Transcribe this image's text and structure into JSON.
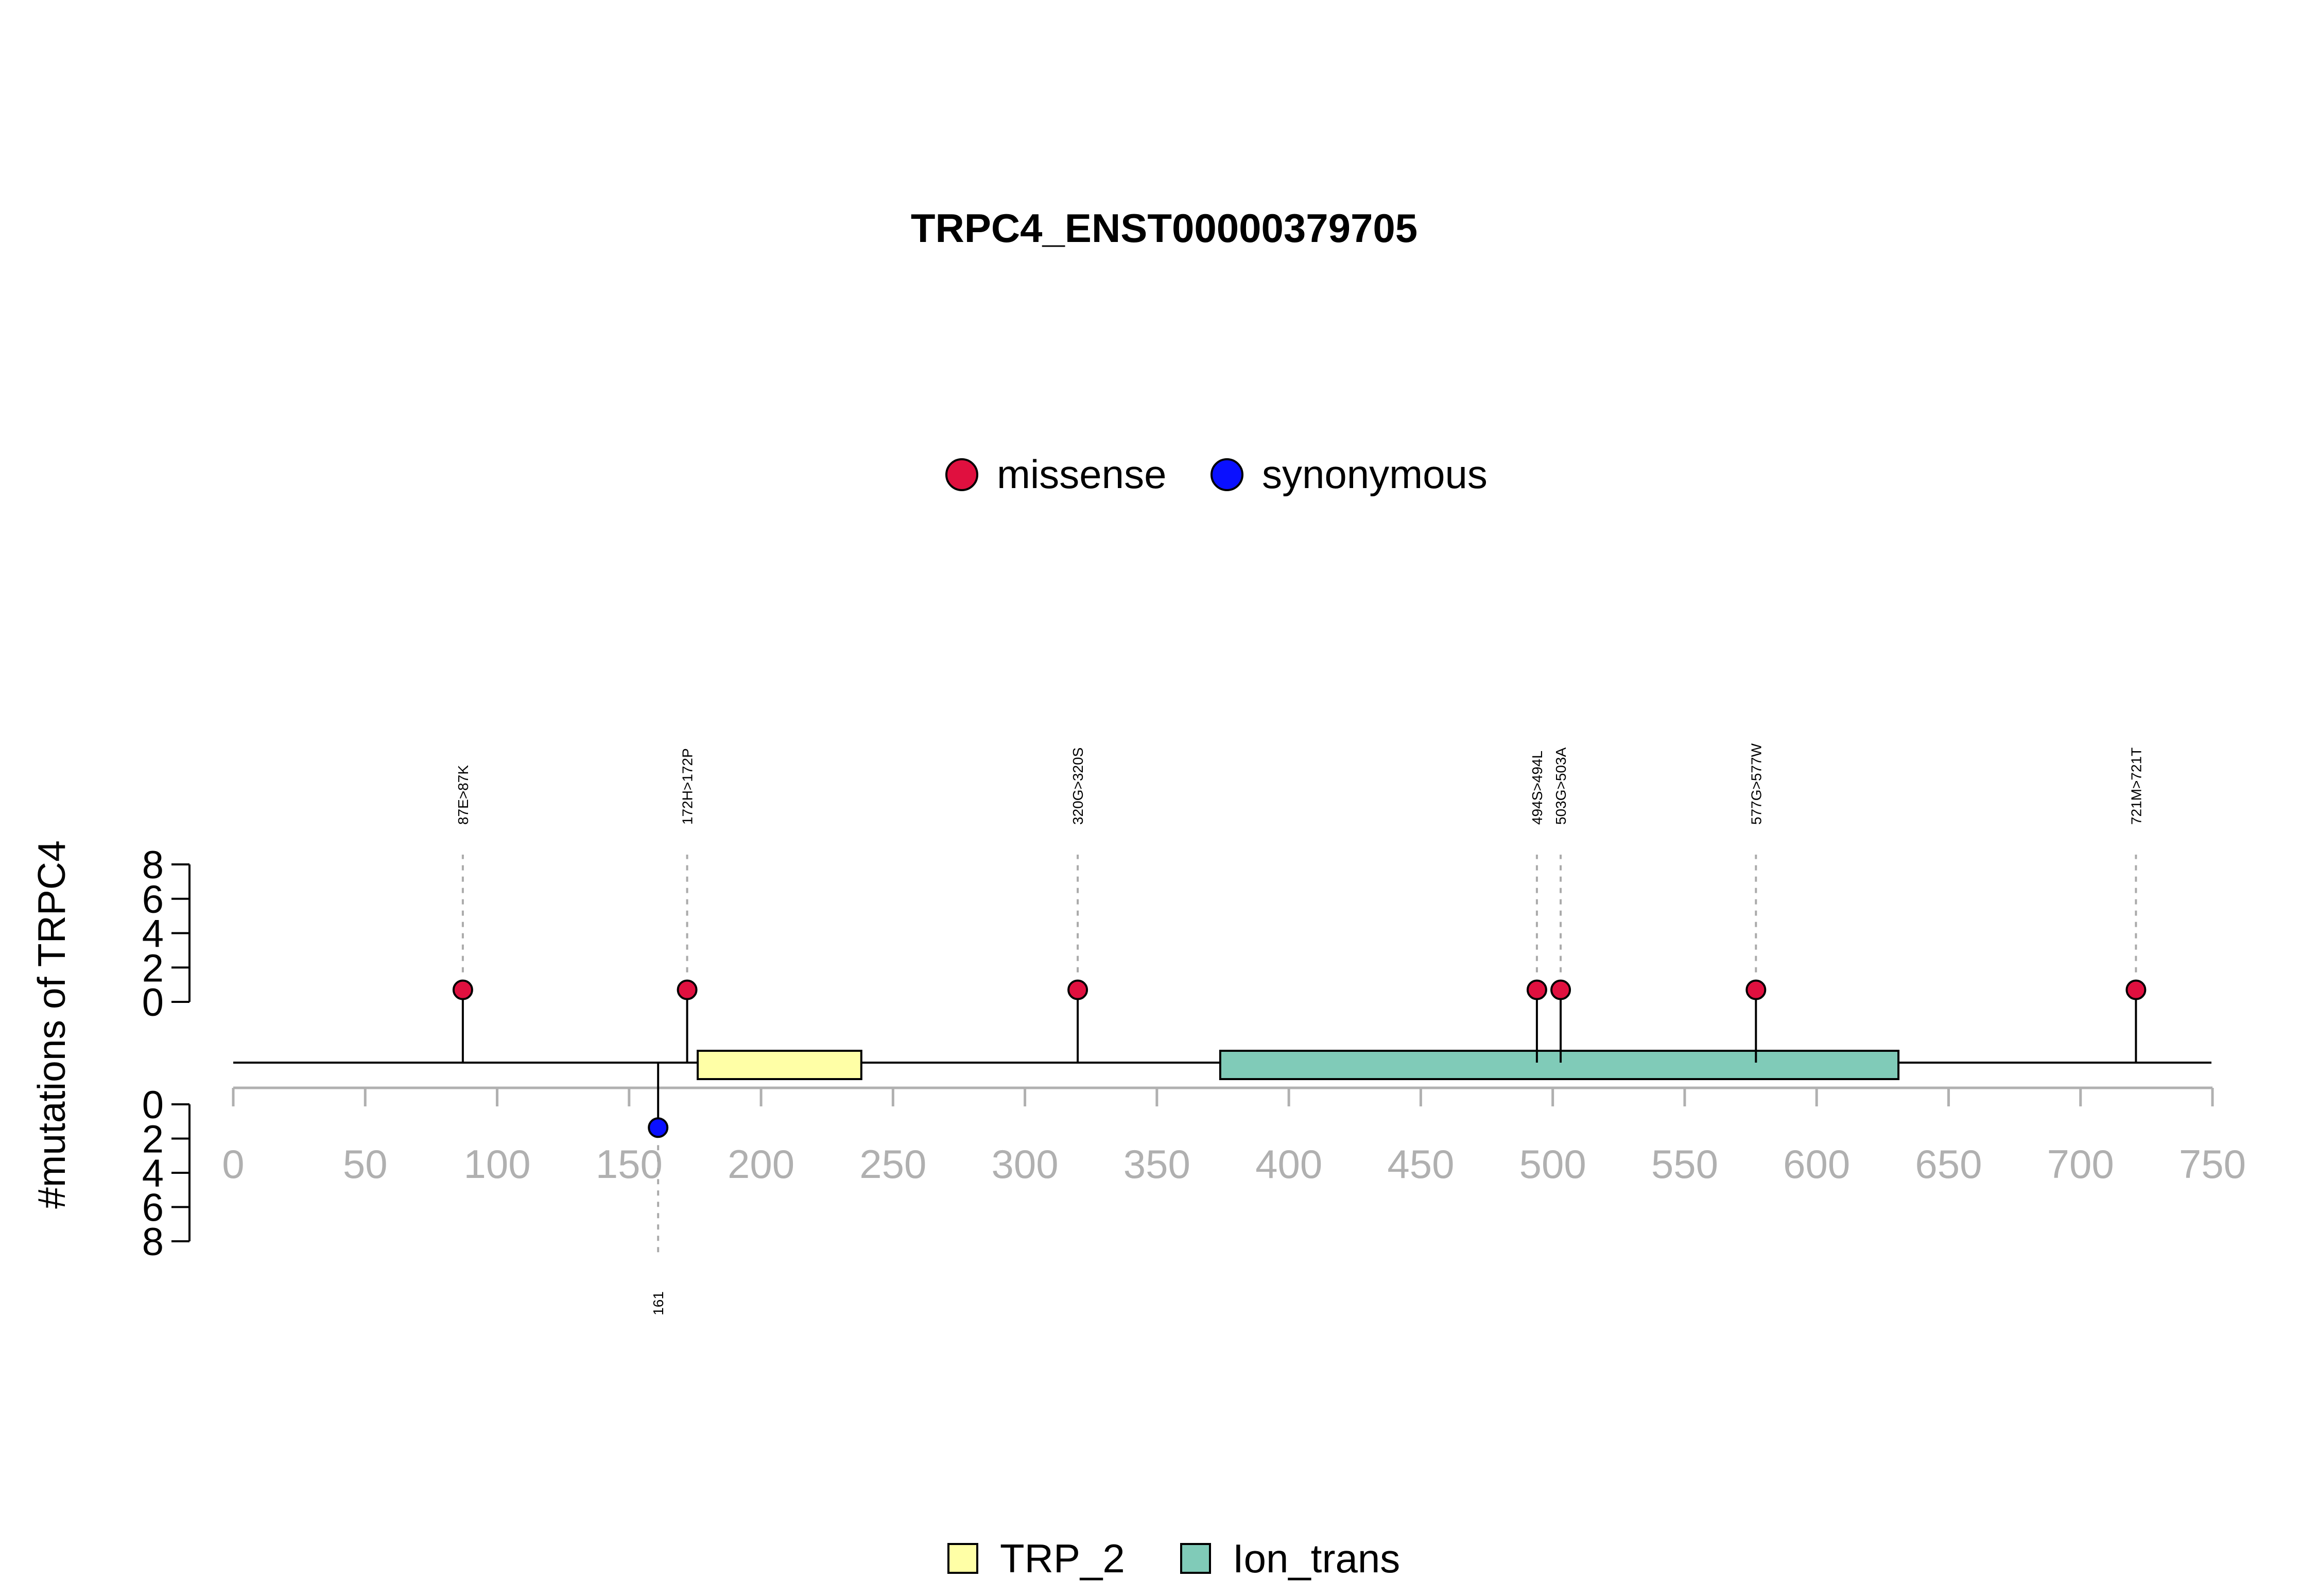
{
  "chart_data": {
    "type": "lollipop",
    "title": "TRPC4_ENST00000379705",
    "ylabel": "#mutations of TRPC4",
    "xlabel": "",
    "xlim": [
      0,
      750
    ],
    "x_ticks": [
      0,
      50,
      100,
      150,
      200,
      250,
      300,
      350,
      400,
      450,
      500,
      550,
      600,
      650,
      700,
      750
    ],
    "y_ticks_top": [
      0,
      2,
      4,
      6,
      8
    ],
    "y_ticks_bottom": [
      0,
      2,
      4,
      6,
      8
    ],
    "ylim": [
      0,
      8
    ],
    "legend_top": [
      {
        "label": "missense",
        "color": "#E0103F"
      },
      {
        "label": "synonymous",
        "color": "#0A10FF"
      }
    ],
    "legend_bottom": [
      {
        "label": "TRP_2",
        "color": "#FFFFA6"
      },
      {
        "label": "Ion_trans",
        "color": "#80CBB8"
      }
    ],
    "domains": [
      {
        "name": "TRP_2",
        "start": 176,
        "end": 238,
        "color": "#FFFFA6"
      },
      {
        "name": "Ion_trans",
        "start": 374,
        "end": 631,
        "color": "#80CBB8"
      }
    ],
    "mutations_top": [
      {
        "pos": 87,
        "label": "87E>87K",
        "count": 1,
        "type": "missense",
        "color": "#E0103F"
      },
      {
        "pos": 172,
        "label": "172H>172P",
        "count": 1,
        "type": "missense",
        "color": "#E0103F"
      },
      {
        "pos": 320,
        "label": "320G>320S",
        "count": 1,
        "type": "missense",
        "color": "#E0103F"
      },
      {
        "pos": 494,
        "label": "494S>494L",
        "count": 1,
        "type": "missense",
        "color": "#E0103F"
      },
      {
        "pos": 503,
        "label": "503G>503A",
        "count": 1,
        "type": "missense",
        "color": "#E0103F"
      },
      {
        "pos": 577,
        "label": "577G>577W",
        "count": 1,
        "type": "missense",
        "color": "#E0103F"
      },
      {
        "pos": 721,
        "label": "721M>721T",
        "count": 1,
        "type": "missense",
        "color": "#E0103F"
      }
    ],
    "mutations_bottom": [
      {
        "pos": 161,
        "label": "161",
        "count": 1,
        "type": "synonymous",
        "color": "#0A10FF"
      }
    ]
  }
}
